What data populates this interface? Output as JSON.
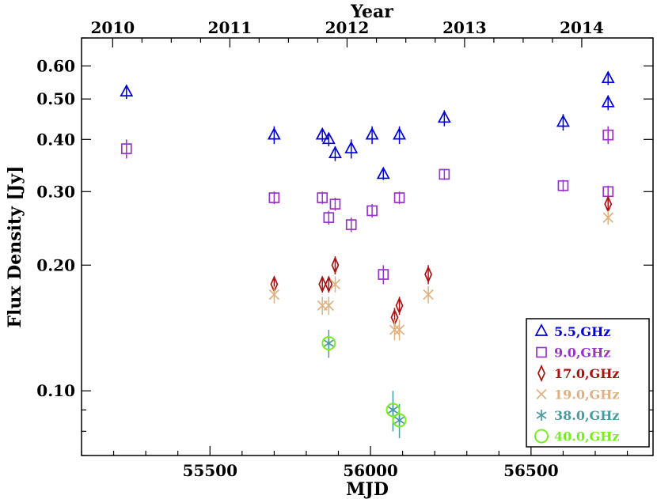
{
  "chart_data": {
    "type": "scatter",
    "xlabel": "MJD",
    "ylabel": "Flux Density [Jy]",
    "top_xlabel": "Year",
    "xlim": [
      55100,
      56880
    ],
    "ylim": [
      0.07,
      0.7
    ],
    "yscale": "log",
    "x_ticks": [
      55500,
      56000,
      56500
    ],
    "x_tick_labels": [
      "55500",
      "56000",
      "56500"
    ],
    "y_ticks": [
      0.1,
      0.2,
      0.3,
      0.4,
      0.5,
      0.6
    ],
    "y_tick_labels": [
      "0.10",
      "0.20",
      "0.30",
      "0.40",
      "0.50",
      "0.60"
    ],
    "top_ticks": [
      {
        "mjd": 55197,
        "label": "2010"
      },
      {
        "mjd": 55562,
        "label": "2011"
      },
      {
        "mjd": 55927,
        "label": "2012"
      },
      {
        "mjd": 56293,
        "label": "2013"
      },
      {
        "mjd": 56658,
        "label": "2014"
      }
    ],
    "legend_position": "bottom-right",
    "series": [
      {
        "name": "5.5,GHz",
        "marker": "triangle",
        "color": "#0000dd",
        "points": [
          [
            55240,
            0.52,
            0.02
          ],
          [
            55700,
            0.41,
            0.02
          ],
          [
            55850,
            0.41,
            0.015
          ],
          [
            55870,
            0.4,
            0.015
          ],
          [
            55890,
            0.37,
            0.015
          ],
          [
            55940,
            0.38,
            0.02
          ],
          [
            56005,
            0.41,
            0.02
          ],
          [
            56040,
            0.33,
            0.01
          ],
          [
            56090,
            0.41,
            0.02
          ],
          [
            56230,
            0.45,
            0.02
          ],
          [
            56600,
            0.44,
            0.02
          ],
          [
            56740,
            0.56,
            0.02
          ],
          [
            56740,
            0.49,
            0.02
          ]
        ]
      },
      {
        "name": "9.0,GHz",
        "marker": "square",
        "color": "#9933cc",
        "points": [
          [
            55240,
            0.38,
            0.02
          ],
          [
            55700,
            0.29,
            0.01
          ],
          [
            55850,
            0.29,
            0.01
          ],
          [
            55870,
            0.26,
            0.01
          ],
          [
            55890,
            0.28,
            0.01
          ],
          [
            55940,
            0.25,
            0.01
          ],
          [
            56005,
            0.27,
            0.01
          ],
          [
            56040,
            0.19,
            0.01
          ],
          [
            56090,
            0.29,
            0.01
          ],
          [
            56230,
            0.33,
            0.01
          ],
          [
            56600,
            0.31,
            0.01
          ],
          [
            56740,
            0.41,
            0.02
          ],
          [
            56740,
            0.3,
            0.01
          ]
        ]
      },
      {
        "name": "17.0,GHz",
        "marker": "diamond",
        "color": "#aa1111",
        "points": [
          [
            55700,
            0.18,
            0.008
          ],
          [
            55850,
            0.18,
            0.008
          ],
          [
            55870,
            0.18,
            0.008
          ],
          [
            55890,
            0.2,
            0.01
          ],
          [
            56075,
            0.15,
            0.008
          ],
          [
            56090,
            0.16,
            0.008
          ],
          [
            56180,
            0.19,
            0.01
          ],
          [
            56740,
            0.28,
            0.01
          ]
        ]
      },
      {
        "name": "19.0,GHz",
        "marker": "x",
        "color": "#e0b080",
        "points": [
          [
            55700,
            0.17,
            0.008
          ],
          [
            55850,
            0.16,
            0.008
          ],
          [
            55870,
            0.16,
            0.008
          ],
          [
            55890,
            0.18,
            0.008
          ],
          [
            56075,
            0.14,
            0.008
          ],
          [
            56090,
            0.14,
            0.008
          ],
          [
            56180,
            0.17,
            0.008
          ],
          [
            56740,
            0.26,
            0.01
          ]
        ]
      },
      {
        "name": "38.0,GHz",
        "marker": "asterisk",
        "color": "#4a9aa0",
        "points": [
          [
            55870,
            0.13,
            0.01
          ],
          [
            56070,
            0.09,
            0.01
          ],
          [
            56090,
            0.085,
            0.008
          ]
        ]
      },
      {
        "name": "40.0,GHz",
        "marker": "circle",
        "color": "#77ee22",
        "points": [
          [
            55870,
            0.13,
            0
          ],
          [
            56070,
            0.09,
            0
          ],
          [
            56090,
            0.085,
            0
          ]
        ]
      }
    ]
  }
}
